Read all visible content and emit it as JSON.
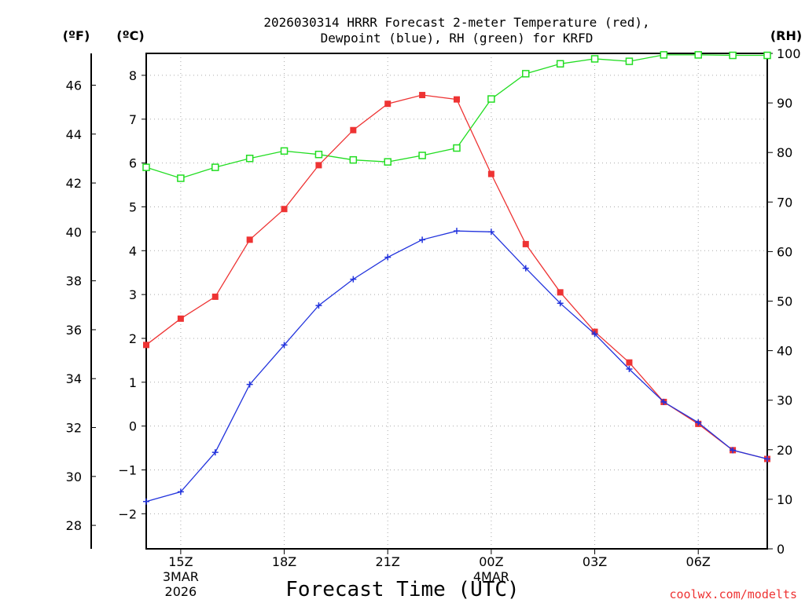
{
  "chart_data": {
    "type": "line",
    "title_line1": "2026030314 HRRR Forecast 2-meter Temperature (red),",
    "title_line2": "Dewpoint (blue), RH (green) for KRFD",
    "xlabel": "Forecast Time (UTC)",
    "credit": "coolwx.com/modelts",
    "unit_labels": {
      "fahrenheit": "(ºF)",
      "celsius": "(ºC)",
      "rh": "(RH)"
    },
    "x_range_hours": [
      14,
      32
    ],
    "x_ticks": [
      {
        "hour": 15,
        "label": "15Z",
        "sub": [
          "3MAR",
          "2026"
        ]
      },
      {
        "hour": 18,
        "label": "18Z",
        "sub": []
      },
      {
        "hour": 21,
        "label": "21Z",
        "sub": []
      },
      {
        "hour": 24,
        "label": "00Z",
        "sub": [
          "4MAR"
        ]
      },
      {
        "hour": 27,
        "label": "03Z",
        "sub": []
      },
      {
        "hour": 30,
        "label": "06Z",
        "sub": []
      }
    ],
    "y_celsius": {
      "range": [
        -2.8,
        8.5
      ],
      "ticks": [
        -2,
        -1,
        0,
        1,
        2,
        3,
        4,
        5,
        6,
        7,
        8
      ]
    },
    "y_fahrenheit": {
      "range": [
        27.04,
        47.3
      ],
      "ticks": [
        28,
        30,
        32,
        34,
        36,
        38,
        40,
        42,
        44,
        46
      ]
    },
    "y_rh": {
      "range": [
        0,
        100
      ],
      "ticks": [
        0,
        10,
        20,
        30,
        40,
        50,
        60,
        70,
        80,
        90,
        100
      ]
    },
    "x": [
      14,
      15,
      16,
      17,
      18,
      19,
      20,
      21,
      22,
      23,
      24,
      25,
      26,
      27,
      28,
      29,
      30,
      31,
      32
    ],
    "series": [
      {
        "name": "2-meter Temperature",
        "axis": "celsius",
        "color": "#ee3333",
        "marker": "filled-square",
        "values": [
          1.85,
          2.45,
          2.95,
          4.25,
          4.95,
          5.95,
          6.75,
          7.35,
          7.55,
          7.45,
          5.75,
          4.15,
          3.05,
          2.15,
          1.45,
          0.55,
          0.05,
          -0.55,
          -0.75
        ]
      },
      {
        "name": "Dewpoint",
        "axis": "celsius",
        "color": "#2233dd",
        "marker": "plus",
        "values": [
          -1.72,
          -1.5,
          -0.6,
          0.95,
          1.85,
          2.75,
          3.35,
          3.85,
          4.25,
          4.45,
          4.43,
          3.6,
          2.8,
          2.1,
          1.3,
          0.55,
          0.08,
          -0.55,
          -0.75
        ]
      },
      {
        "name": "RH",
        "axis": "rh",
        "color": "#22dd22",
        "marker": "open-square",
        "values": [
          77.0,
          74.8,
          77.0,
          78.8,
          80.3,
          79.6,
          78.5,
          78.1,
          79.4,
          80.9,
          90.8,
          95.9,
          97.9,
          98.9,
          98.4,
          99.7,
          99.7,
          99.6,
          99.6
        ]
      }
    ]
  }
}
